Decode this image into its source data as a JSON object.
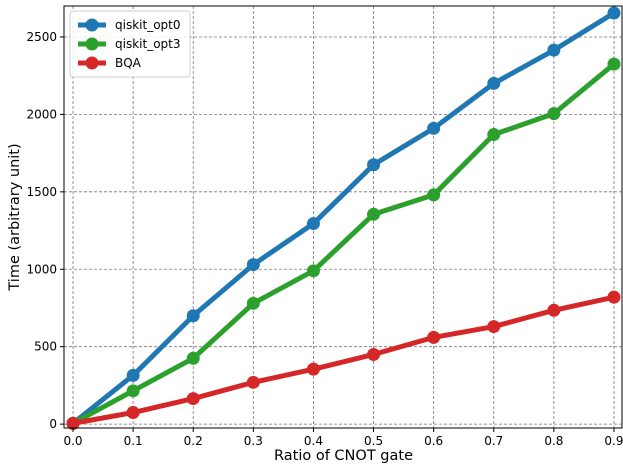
{
  "chart_data": {
    "type": "line",
    "title": "",
    "xlabel": "Ratio of CNOT gate",
    "ylabel": "Time (arbitrary unit)",
    "x": [
      0.0,
      0.1,
      0.2,
      0.3,
      0.4,
      0.5,
      0.6,
      0.7,
      0.8,
      0.9
    ],
    "xticks": [
      "0.0",
      "0.1",
      "0.2",
      "0.3",
      "0.4",
      "0.5",
      "0.6",
      "0.7",
      "0.8",
      "0.9"
    ],
    "yticks": [
      "0",
      "500",
      "1000",
      "1500",
      "2000",
      "2500"
    ],
    "xlim": [
      -0.015,
      0.915
    ],
    "ylim": [
      -25,
      2700
    ],
    "grid": true,
    "legend": "top-left",
    "series": [
      {
        "name": "qiskit_opt0",
        "color": "#1f77b4",
        "values": [
          5,
          315,
          700,
          1030,
          1295,
          1675,
          1910,
          2200,
          2415,
          2655
        ]
      },
      {
        "name": "qiskit_opt3",
        "color": "#2ca02c",
        "values": [
          5,
          215,
          425,
          780,
          990,
          1355,
          1480,
          1870,
          2005,
          2325
        ]
      },
      {
        "name": "BQA",
        "color": "#d62728",
        "values": [
          5,
          75,
          165,
          270,
          355,
          450,
          560,
          630,
          735,
          820
        ]
      }
    ]
  }
}
